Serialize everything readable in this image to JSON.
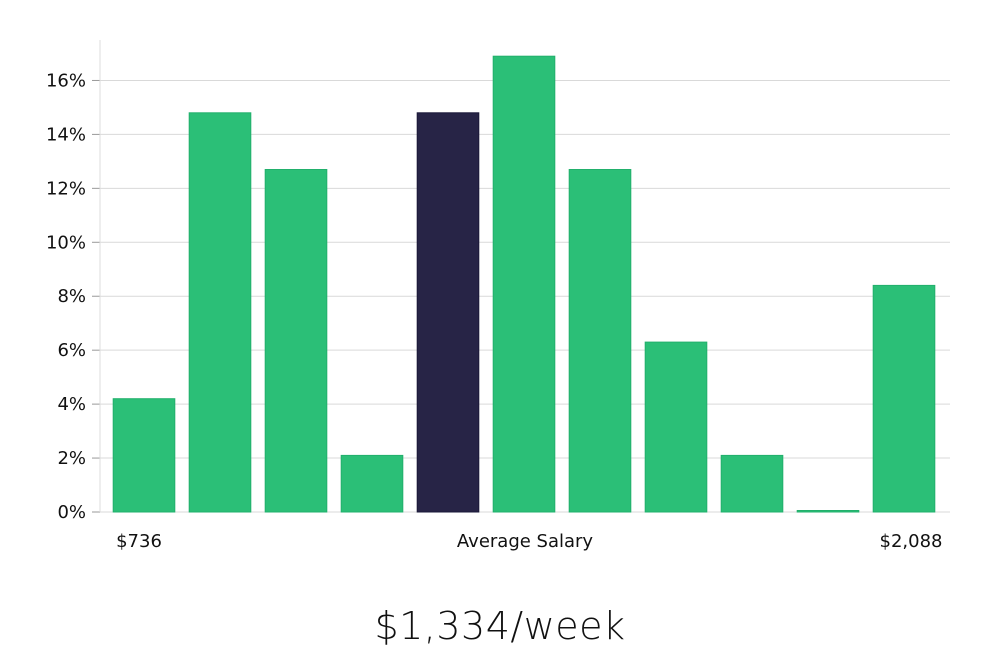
{
  "chart_data": {
    "type": "bar",
    "ylim": [
      0,
      17.5
    ],
    "y_ticks": [
      0,
      2,
      4,
      6,
      8,
      10,
      12,
      14,
      16
    ],
    "y_tick_labels": [
      "0%",
      "2%",
      "4%",
      "6%",
      "8%",
      "10%",
      "12%",
      "14%",
      "16%"
    ],
    "values": [
      4.2,
      14.8,
      12.7,
      2.1,
      14.8,
      16.9,
      12.7,
      6.3,
      2.1,
      0.0,
      8.4
    ],
    "highlight_index": 4,
    "x_labels": {
      "min": "$736",
      "center": "Average Salary",
      "max": "$2,088"
    },
    "grid": true,
    "colors": {
      "bar": "#2bbf77",
      "highlight": "#272446",
      "grid": "#d9d9d9",
      "axis": "#cccccc"
    }
  },
  "summary": {
    "salary": "$1,334/week"
  }
}
